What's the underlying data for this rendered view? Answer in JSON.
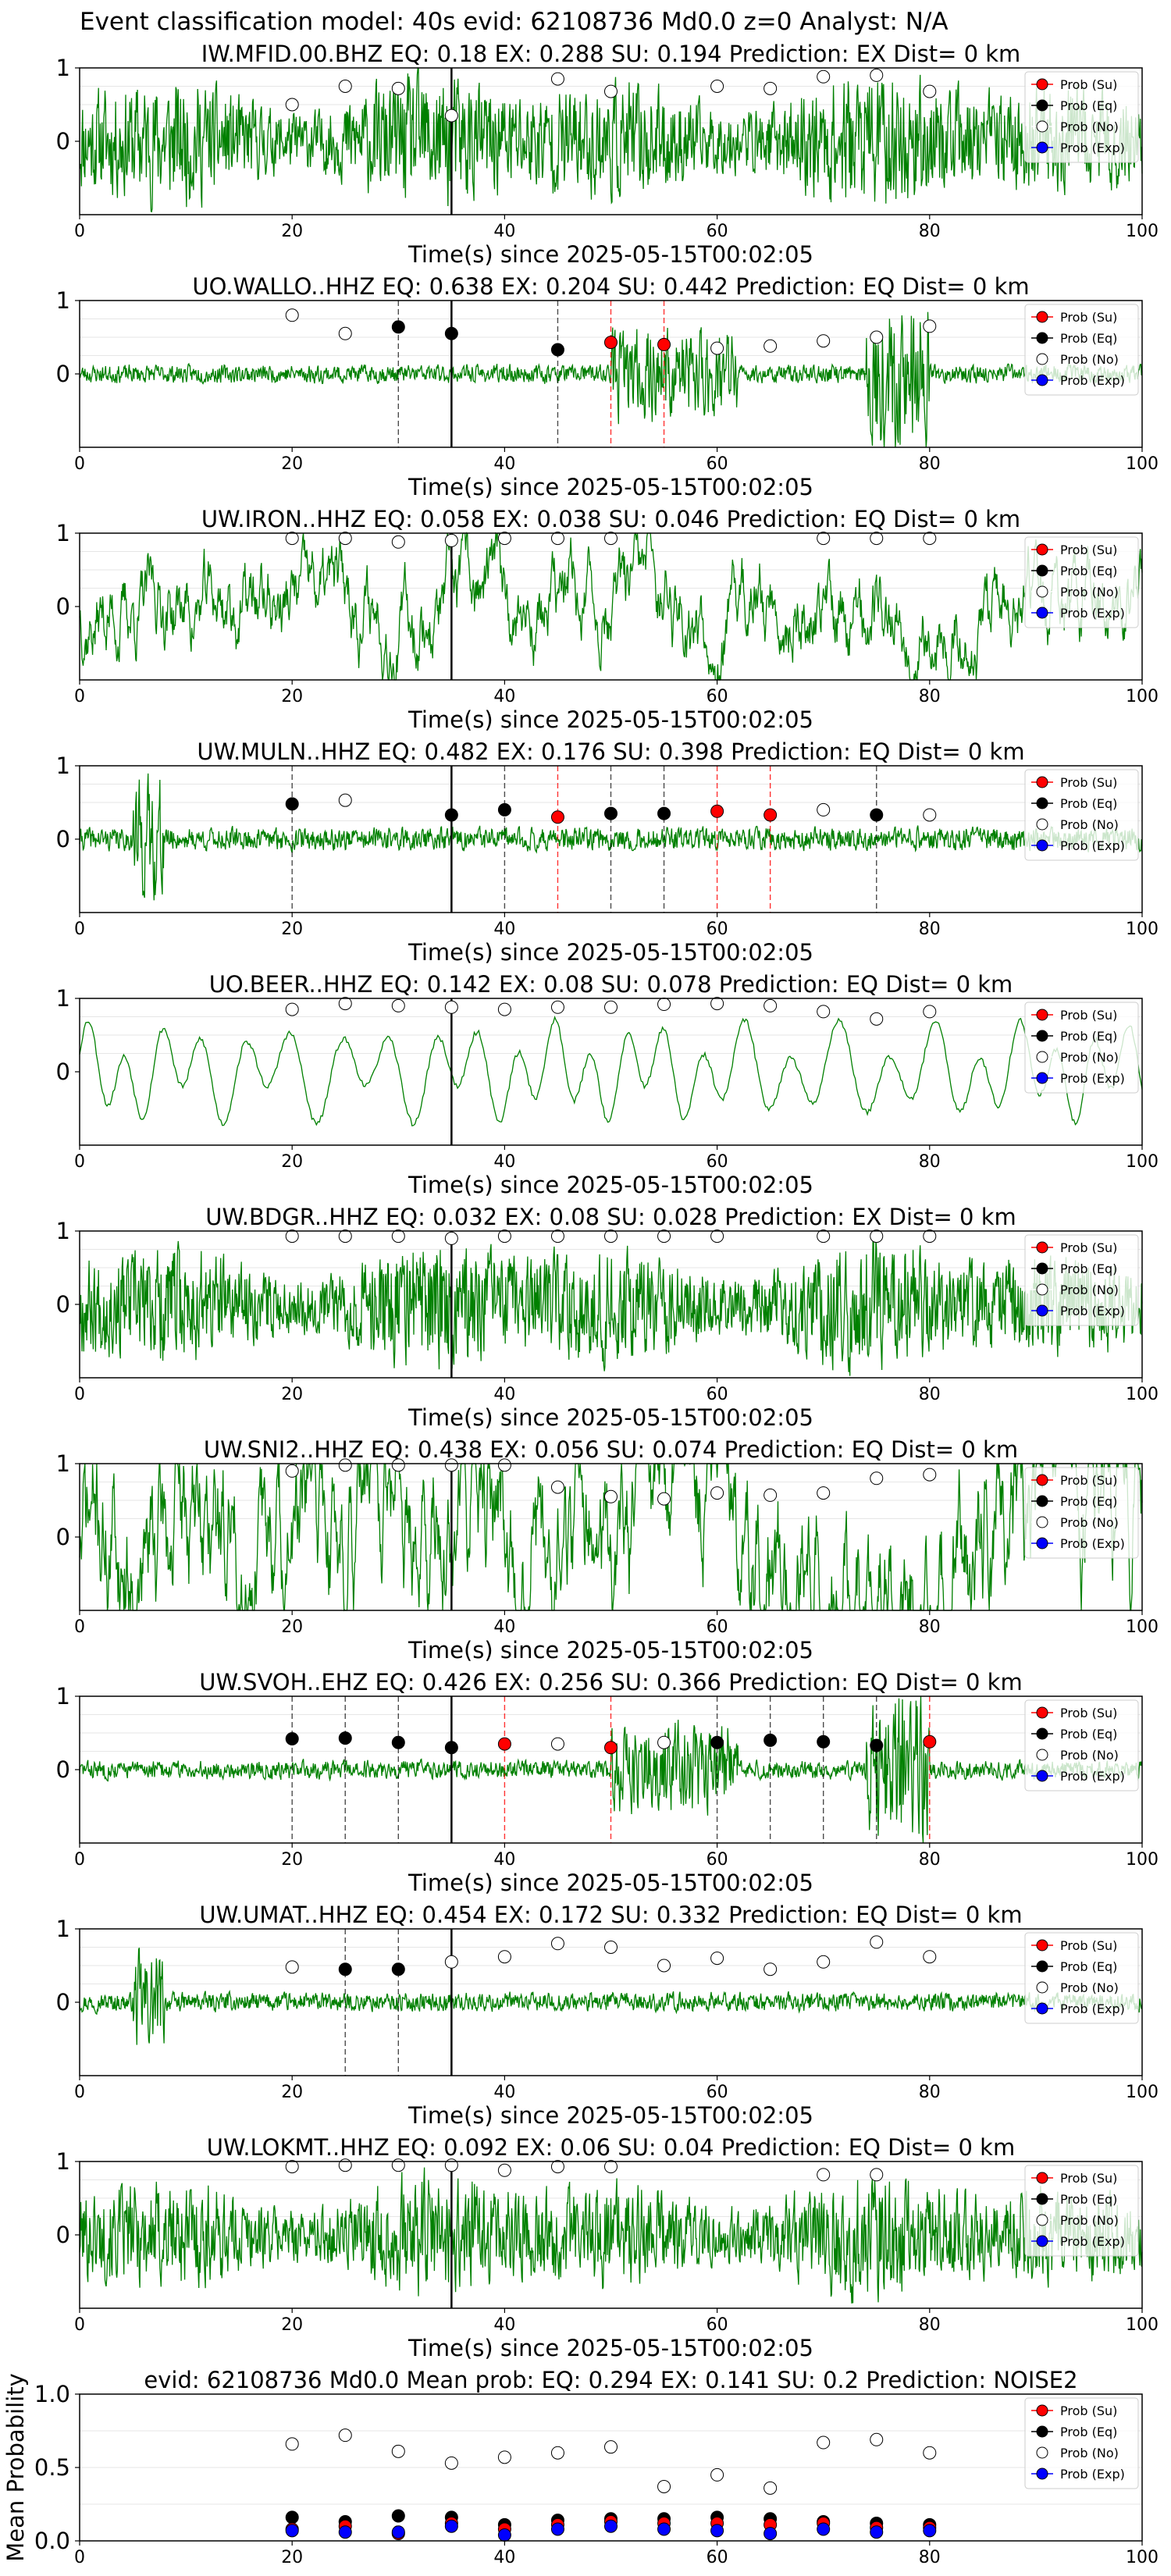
{
  "figure_title": "Event classification model: 40s evid: 62108736 Md0.0 z=0 Analyst: N/A",
  "colors": {
    "trace": "#008000",
    "su": "#ff0000",
    "eq": "#000000",
    "no": "#ffffff",
    "exp": "#0000ff",
    "pick_line": "#000000"
  },
  "legend": [
    "Prob (Su)",
    "Prob (Eq)",
    "Prob (No)",
    "Prob (Exp)"
  ],
  "chart_data": [
    {
      "type": "line",
      "title": "IW.MFID.00.BHZ   EQ: 0.18   EX: 0.288   SU: 0.194   Prediction: EX    Dist= 0 km",
      "xlabel": "Time(s) since 2025-05-15T00:02:05",
      "xlim": [
        0,
        100
      ],
      "ylim": [
        -1,
        1
      ],
      "xticks": [
        0,
        20,
        40,
        60,
        80,
        100
      ],
      "yticks": [
        1,
        0
      ],
      "trace_style": "dense",
      "trace_amplitude": 0.85,
      "seed": 11,
      "pick_time": 35,
      "points": [
        {
          "t": 20,
          "p": 0.5,
          "cls": "no"
        },
        {
          "t": 25,
          "p": 0.75,
          "cls": "no"
        },
        {
          "t": 30,
          "p": 0.72,
          "cls": "no"
        },
        {
          "t": 35,
          "p": 0.35,
          "cls": "no"
        },
        {
          "t": 45,
          "p": 0.85,
          "cls": "no"
        },
        {
          "t": 50,
          "p": 0.68,
          "cls": "no"
        },
        {
          "t": 60,
          "p": 0.75,
          "cls": "no"
        },
        {
          "t": 65,
          "p": 0.72,
          "cls": "no"
        },
        {
          "t": 70,
          "p": 0.88,
          "cls": "no"
        },
        {
          "t": 75,
          "p": 0.9,
          "cls": "no"
        },
        {
          "t": 80,
          "p": 0.68,
          "cls": "no"
        }
      ],
      "vlines": []
    },
    {
      "type": "line",
      "title": "UO.WALLO..HHZ   EQ: 0.638   EX: 0.204   SU: 0.442   Prediction: EQ    Dist= 0 km",
      "xlabel": "Time(s) since 2025-05-15T00:02:05",
      "xlim": [
        0,
        100
      ],
      "ylim": [
        -1,
        1
      ],
      "xticks": [
        0,
        20,
        40,
        60,
        80,
        100
      ],
      "yticks": [
        1,
        0
      ],
      "trace_style": "quiet_burst",
      "trace_amplitude": 0.3,
      "seed": 23,
      "pick_time": 35,
      "points": [
        {
          "t": 20,
          "p": 0.8,
          "cls": "no"
        },
        {
          "t": 25,
          "p": 0.55,
          "cls": "no"
        },
        {
          "t": 30,
          "p": 0.64,
          "cls": "eq"
        },
        {
          "t": 35,
          "p": 0.55,
          "cls": "eq"
        },
        {
          "t": 45,
          "p": 0.33,
          "cls": "eq"
        },
        {
          "t": 50,
          "p": 0.43,
          "cls": "su"
        },
        {
          "t": 55,
          "p": 0.4,
          "cls": "su"
        },
        {
          "t": 60,
          "p": 0.35,
          "cls": "no"
        },
        {
          "t": 65,
          "p": 0.38,
          "cls": "no"
        },
        {
          "t": 70,
          "p": 0.45,
          "cls": "no"
        },
        {
          "t": 75,
          "p": 0.5,
          "cls": "no"
        },
        {
          "t": 80,
          "p": 0.65,
          "cls": "no"
        }
      ],
      "vlines": [
        {
          "t": 30,
          "cls": "eq"
        },
        {
          "t": 45,
          "cls": "eq"
        },
        {
          "t": 50,
          "cls": "su"
        },
        {
          "t": 55,
          "cls": "su"
        }
      ]
    },
    {
      "type": "line",
      "title": "UW.IRON..HHZ   EQ: 0.058  EX: 0.038  SU: 0.046   Prediction: EQ    Dist= 0 km",
      "xlabel": "Time(s) since 2025-05-15T00:02:05",
      "xlim": [
        0,
        100
      ],
      "ylim": [
        -1,
        1
      ],
      "xticks": [
        0,
        20,
        40,
        60,
        80,
        100
      ],
      "yticks": [
        1,
        0
      ],
      "trace_style": "medium",
      "trace_amplitude": 0.4,
      "seed": 37,
      "pick_time": 35,
      "points": [
        {
          "t": 20,
          "p": 0.93,
          "cls": "no"
        },
        {
          "t": 25,
          "p": 0.93,
          "cls": "no"
        },
        {
          "t": 30,
          "p": 0.88,
          "cls": "no"
        },
        {
          "t": 35,
          "p": 0.9,
          "cls": "no"
        },
        {
          "t": 40,
          "p": 0.93,
          "cls": "no"
        },
        {
          "t": 45,
          "p": 0.93,
          "cls": "no"
        },
        {
          "t": 50,
          "p": 0.93,
          "cls": "no"
        },
        {
          "t": 70,
          "p": 0.93,
          "cls": "no"
        },
        {
          "t": 75,
          "p": 0.93,
          "cls": "no"
        },
        {
          "t": 80,
          "p": 0.93,
          "cls": "no"
        }
      ],
      "vlines": []
    },
    {
      "type": "line",
      "title": "UW.MULN..HHZ   EQ: 0.482  EX: 0.176  SU: 0.398   Prediction: EQ    Dist= 0 km",
      "xlabel": "Time(s) since 2025-05-15T00:02:05",
      "xlim": [
        0,
        100
      ],
      "ylim": [
        -1,
        1
      ],
      "xticks": [
        0,
        20,
        40,
        60,
        80,
        100
      ],
      "yticks": [
        1,
        0
      ],
      "trace_style": "quiet",
      "trace_amplitude": 0.22,
      "seed": 41,
      "pick_time": 35,
      "points": [
        {
          "t": 20,
          "p": 0.48,
          "cls": "eq"
        },
        {
          "t": 25,
          "p": 0.53,
          "cls": "no"
        },
        {
          "t": 35,
          "p": 0.33,
          "cls": "eq"
        },
        {
          "t": 40,
          "p": 0.4,
          "cls": "eq"
        },
        {
          "t": 45,
          "p": 0.3,
          "cls": "su"
        },
        {
          "t": 50,
          "p": 0.35,
          "cls": "eq"
        },
        {
          "t": 55,
          "p": 0.35,
          "cls": "eq"
        },
        {
          "t": 60,
          "p": 0.38,
          "cls": "su"
        },
        {
          "t": 65,
          "p": 0.33,
          "cls": "su"
        },
        {
          "t": 70,
          "p": 0.4,
          "cls": "no"
        },
        {
          "t": 75,
          "p": 0.33,
          "cls": "eq"
        },
        {
          "t": 80,
          "p": 0.33,
          "cls": "no"
        }
      ],
      "vlines": [
        {
          "t": 20,
          "cls": "eq"
        },
        {
          "t": 40,
          "cls": "eq"
        },
        {
          "t": 45,
          "cls": "su"
        },
        {
          "t": 50,
          "cls": "eq"
        },
        {
          "t": 55,
          "cls": "eq"
        },
        {
          "t": 60,
          "cls": "su"
        },
        {
          "t": 65,
          "cls": "su"
        },
        {
          "t": 75,
          "cls": "eq"
        }
      ]
    },
    {
      "type": "line",
      "title": "UO.BEER..HHZ   EQ: 0.142  EX: 0.08  SU: 0.078   Prediction: EQ    Dist= 0 km",
      "xlabel": "Time(s) since 2025-05-15T00:02:05",
      "xlim": [
        0,
        100
      ],
      "ylim": [
        -1,
        1
      ],
      "xticks": [
        0,
        20,
        40,
        60,
        80,
        100
      ],
      "yticks": [
        1,
        0
      ],
      "trace_style": "smooth",
      "trace_amplitude": 0.75,
      "seed": 53,
      "pick_time": 35,
      "points": [
        {
          "t": 20,
          "p": 0.85,
          "cls": "no"
        },
        {
          "t": 25,
          "p": 0.93,
          "cls": "no"
        },
        {
          "t": 30,
          "p": 0.9,
          "cls": "no"
        },
        {
          "t": 35,
          "p": 0.88,
          "cls": "no"
        },
        {
          "t": 40,
          "p": 0.85,
          "cls": "no"
        },
        {
          "t": 45,
          "p": 0.88,
          "cls": "no"
        },
        {
          "t": 50,
          "p": 0.88,
          "cls": "no"
        },
        {
          "t": 55,
          "p": 0.92,
          "cls": "no"
        },
        {
          "t": 60,
          "p": 0.93,
          "cls": "no"
        },
        {
          "t": 65,
          "p": 0.9,
          "cls": "no"
        },
        {
          "t": 70,
          "p": 0.82,
          "cls": "no"
        },
        {
          "t": 75,
          "p": 0.72,
          "cls": "no"
        },
        {
          "t": 80,
          "p": 0.82,
          "cls": "no"
        }
      ],
      "vlines": []
    },
    {
      "type": "line",
      "title": "UW.BDGR..HHZ   EQ: 0.032  EX: 0.08  SU: 0.028   Prediction: EX    Dist= 0 km",
      "xlabel": "Time(s) since 2025-05-15T00:02:05",
      "xlim": [
        0,
        100
      ],
      "ylim": [
        -1,
        1
      ],
      "xticks": [
        0,
        20,
        40,
        60,
        80,
        100
      ],
      "yticks": [
        1,
        0
      ],
      "trace_style": "dense",
      "trace_amplitude": 0.8,
      "seed": 67,
      "pick_time": 35,
      "points": [
        {
          "t": 20,
          "p": 0.93,
          "cls": "no"
        },
        {
          "t": 25,
          "p": 0.93,
          "cls": "no"
        },
        {
          "t": 30,
          "p": 0.93,
          "cls": "no"
        },
        {
          "t": 35,
          "p": 0.9,
          "cls": "no"
        },
        {
          "t": 40,
          "p": 0.93,
          "cls": "no"
        },
        {
          "t": 45,
          "p": 0.93,
          "cls": "no"
        },
        {
          "t": 50,
          "p": 0.93,
          "cls": "no"
        },
        {
          "t": 55,
          "p": 0.93,
          "cls": "no"
        },
        {
          "t": 60,
          "p": 0.93,
          "cls": "no"
        },
        {
          "t": 70,
          "p": 0.93,
          "cls": "no"
        },
        {
          "t": 75,
          "p": 0.93,
          "cls": "no"
        },
        {
          "t": 80,
          "p": 0.93,
          "cls": "no"
        }
      ],
      "vlines": []
    },
    {
      "type": "line",
      "title": "UW.SNI2..HHZ   EQ: 0.438  EX: 0.056  SU: 0.074   Prediction: EQ    Dist= 0 km",
      "xlabel": "Time(s) since 2025-05-15T00:02:05",
      "xlim": [
        0,
        100
      ],
      "ylim": [
        -1,
        1
      ],
      "xticks": [
        0,
        20,
        40,
        60,
        80,
        100
      ],
      "yticks": [
        1,
        0
      ],
      "trace_style": "medium",
      "trace_amplitude": 0.8,
      "seed": 71,
      "pick_time": 35,
      "points": [
        {
          "t": 20,
          "p": 0.9,
          "cls": "no"
        },
        {
          "t": 25,
          "p": 0.98,
          "cls": "no"
        },
        {
          "t": 30,
          "p": 0.98,
          "cls": "no"
        },
        {
          "t": 35,
          "p": 0.98,
          "cls": "no"
        },
        {
          "t": 40,
          "p": 0.98,
          "cls": "no"
        },
        {
          "t": 45,
          "p": 0.68,
          "cls": "no"
        },
        {
          "t": 50,
          "p": 0.55,
          "cls": "no"
        },
        {
          "t": 55,
          "p": 0.52,
          "cls": "no"
        },
        {
          "t": 60,
          "p": 0.6,
          "cls": "no"
        },
        {
          "t": 65,
          "p": 0.57,
          "cls": "no"
        },
        {
          "t": 70,
          "p": 0.6,
          "cls": "no"
        },
        {
          "t": 75,
          "p": 0.8,
          "cls": "no"
        },
        {
          "t": 80,
          "p": 0.85,
          "cls": "no"
        }
      ],
      "vlines": []
    },
    {
      "type": "line",
      "title": "UW.SVOH..EHZ   EQ: 0.426  EX: 0.256  SU: 0.366   Prediction: EQ    Dist= 0 km",
      "xlabel": "Time(s) since 2025-05-15T00:02:05",
      "xlim": [
        0,
        100
      ],
      "ylim": [
        -1,
        1
      ],
      "xticks": [
        0,
        20,
        40,
        60,
        80,
        100
      ],
      "yticks": [
        1,
        0
      ],
      "trace_style": "quiet_burst",
      "trace_amplitude": 0.3,
      "seed": 83,
      "pick_time": 35,
      "points": [
        {
          "t": 20,
          "p": 0.42,
          "cls": "eq"
        },
        {
          "t": 25,
          "p": 0.43,
          "cls": "eq"
        },
        {
          "t": 30,
          "p": 0.37,
          "cls": "eq"
        },
        {
          "t": 35,
          "p": 0.3,
          "cls": "eq"
        },
        {
          "t": 40,
          "p": 0.35,
          "cls": "su"
        },
        {
          "t": 45,
          "p": 0.35,
          "cls": "no"
        },
        {
          "t": 50,
          "p": 0.3,
          "cls": "su"
        },
        {
          "t": 55,
          "p": 0.37,
          "cls": "no"
        },
        {
          "t": 60,
          "p": 0.37,
          "cls": "eq"
        },
        {
          "t": 65,
          "p": 0.4,
          "cls": "eq"
        },
        {
          "t": 70,
          "p": 0.38,
          "cls": "eq"
        },
        {
          "t": 75,
          "p": 0.33,
          "cls": "eq"
        },
        {
          "t": 80,
          "p": 0.38,
          "cls": "su"
        }
      ],
      "vlines": [
        {
          "t": 20,
          "cls": "eq"
        },
        {
          "t": 25,
          "cls": "eq"
        },
        {
          "t": 30,
          "cls": "eq"
        },
        {
          "t": 40,
          "cls": "su"
        },
        {
          "t": 50,
          "cls": "su"
        },
        {
          "t": 60,
          "cls": "eq"
        },
        {
          "t": 65,
          "cls": "eq"
        },
        {
          "t": 70,
          "cls": "eq"
        },
        {
          "t": 75,
          "cls": "eq"
        },
        {
          "t": 80,
          "cls": "su"
        }
      ]
    },
    {
      "type": "line",
      "title": "UW.UMAT..HHZ   EQ: 0.454  EX: 0.172  SU: 0.332   Prediction: EQ    Dist= 0 km",
      "xlabel": "Time(s) since 2025-05-15T00:02:05",
      "xlim": [
        0,
        100
      ],
      "ylim": [
        -1,
        1
      ],
      "xticks": [
        0,
        20,
        40,
        60,
        80,
        100
      ],
      "yticks": [
        1,
        0
      ],
      "trace_style": "quiet",
      "trace_amplitude": 0.18,
      "seed": 97,
      "pick_time": 35,
      "points": [
        {
          "t": 20,
          "p": 0.48,
          "cls": "no"
        },
        {
          "t": 25,
          "p": 0.45,
          "cls": "eq"
        },
        {
          "t": 30,
          "p": 0.45,
          "cls": "eq"
        },
        {
          "t": 35,
          "p": 0.55,
          "cls": "no"
        },
        {
          "t": 40,
          "p": 0.62,
          "cls": "no"
        },
        {
          "t": 45,
          "p": 0.8,
          "cls": "no"
        },
        {
          "t": 50,
          "p": 0.75,
          "cls": "no"
        },
        {
          "t": 55,
          "p": 0.5,
          "cls": "no"
        },
        {
          "t": 60,
          "p": 0.6,
          "cls": "no"
        },
        {
          "t": 65,
          "p": 0.45,
          "cls": "no"
        },
        {
          "t": 70,
          "p": 0.55,
          "cls": "no"
        },
        {
          "t": 75,
          "p": 0.82,
          "cls": "no"
        },
        {
          "t": 80,
          "p": 0.62,
          "cls": "no"
        }
      ],
      "vlines": [
        {
          "t": 25,
          "cls": "eq"
        },
        {
          "t": 30,
          "cls": "eq"
        }
      ]
    },
    {
      "type": "line",
      "title": "UW.LOKMT..HHZ   EQ: 0.092  EX: 0.06  SU: 0.04   Prediction: EQ    Dist= 0 km",
      "xlabel": "Time(s) since 2025-05-15T00:02:05",
      "xlim": [
        0,
        100
      ],
      "ylim": [
        -1,
        1
      ],
      "xticks": [
        0,
        20,
        40,
        60,
        80,
        100
      ],
      "yticks": [
        1,
        0
      ],
      "trace_style": "dense",
      "trace_amplitude": 0.75,
      "seed": 101,
      "pick_time": 35,
      "points": [
        {
          "t": 20,
          "p": 0.93,
          "cls": "no"
        },
        {
          "t": 25,
          "p": 0.95,
          "cls": "no"
        },
        {
          "t": 30,
          "p": 0.95,
          "cls": "no"
        },
        {
          "t": 35,
          "p": 0.95,
          "cls": "no"
        },
        {
          "t": 40,
          "p": 0.88,
          "cls": "no"
        },
        {
          "t": 45,
          "p": 0.93,
          "cls": "no"
        },
        {
          "t": 50,
          "p": 0.93,
          "cls": "no"
        },
        {
          "t": 70,
          "p": 0.82,
          "cls": "no"
        },
        {
          "t": 75,
          "p": 0.82,
          "cls": "no"
        }
      ],
      "vlines": []
    },
    {
      "type": "scatter",
      "title": "evid: 62108736   Md0.0    Mean prob:   EQ: 0.294  EX: 0.141  SU: 0.2   Prediction: NOISE2",
      "ylabel": "Mean Probability",
      "xlim": [
        0,
        100
      ],
      "ylim": [
        0,
        1
      ],
      "xticks": [
        0,
        20,
        40,
        60,
        80,
        100
      ],
      "yticks": [
        1.0,
        0.5,
        0.0
      ],
      "x": [
        20,
        25,
        30,
        35,
        40,
        45,
        50,
        55,
        60,
        65,
        70,
        75,
        80
      ],
      "series": [
        {
          "cls": "no",
          "values": [
            0.66,
            0.72,
            0.61,
            0.53,
            0.57,
            0.6,
            0.64,
            0.37,
            0.45,
            0.36,
            0.67,
            0.69,
            0.6
          ]
        },
        {
          "cls": "eq",
          "values": [
            0.16,
            0.13,
            0.17,
            0.16,
            0.11,
            0.14,
            0.15,
            0.15,
            0.16,
            0.15,
            0.13,
            0.12,
            0.11
          ]
        },
        {
          "cls": "su",
          "values": [
            0.08,
            0.1,
            0.05,
            0.12,
            0.08,
            0.11,
            0.13,
            0.12,
            0.12,
            0.11,
            0.12,
            0.09,
            0.09
          ]
        },
        {
          "cls": "exp",
          "values": [
            0.07,
            0.06,
            0.06,
            0.1,
            0.04,
            0.08,
            0.1,
            0.08,
            0.07,
            0.05,
            0.08,
            0.06,
            0.07
          ]
        }
      ]
    }
  ]
}
